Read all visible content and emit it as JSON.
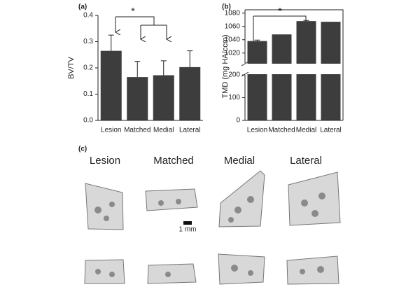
{
  "chart_data": [
    {
      "type": "bar",
      "panel": "(a)",
      "y_label": "BV/TV",
      "annotation": "*",
      "categories": [
        "Lesion",
        "Matched",
        "Medial",
        "Lateral"
      ],
      "values": [
        0.265,
        0.165,
        0.172,
        0.203
      ],
      "errors": [
        0.06,
        0.06,
        0.055,
        0.062
      ],
      "color": "#3d3d3d",
      "ylim": [
        0,
        0.4
      ],
      "yticks": [
        {
          "value": 0,
          "label": "0.0"
        },
        0.1,
        0.2,
        0.3,
        0.4
      ]
    },
    {
      "type": "bar",
      "panel": "(b)",
      "y_label": "TMD (mg HA/ccm)",
      "annotation": "*",
      "categories": [
        "Lesion",
        "Matched",
        "Medial",
        "Lateral"
      ],
      "values": [
        1038,
        1048,
        1068,
        1067
      ],
      "errors": [
        1.5,
        null,
        1,
        null
      ],
      "color": "#3d3d3d",
      "ylim": [
        0,
        1085
      ],
      "axis_break": [
        200,
        1005
      ],
      "yticks": [
        0,
        100,
        200,
        1020,
        1040,
        1060,
        1080
      ]
    }
  ],
  "panel_c": {
    "label": "(c)",
    "columns": [
      "Lesion",
      "Matched",
      "Medial",
      "Lateral"
    ],
    "scale_bar": "1 mm"
  }
}
